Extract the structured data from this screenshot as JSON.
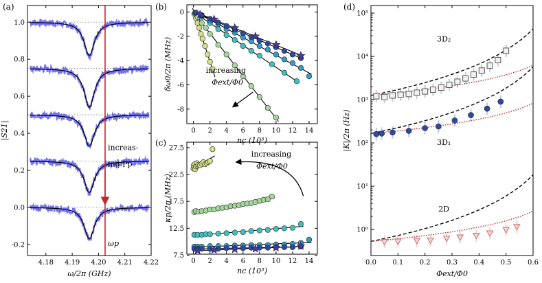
{
  "chart_data": [
    {
      "panel_label": "(a)",
      "type": "line",
      "xlabel": "ω/2π (GHz)",
      "ylabel": "|S21|",
      "xlim": [
        4.173,
        4.22
      ],
      "ylim": [
        -0.26,
        1.09
      ],
      "x_ticks": [
        "4.18",
        "4.19",
        "4.20",
        "4.21",
        "4.22"
      ],
      "y_ticks": [
        "-0.2",
        "0.0",
        "0.2",
        "0.4",
        "0.6",
        "0.8",
        "1.0"
      ],
      "baselines": [
        1.0,
        0.75,
        0.5,
        0.25,
        0.0
      ],
      "dip_center": 4.1965,
      "dip_depths": [
        0.18,
        0.21,
        0.17,
        0.17,
        0.17
      ],
      "vertical_line_x": 4.2025,
      "vertical_line_label": "ωp",
      "annotation": [
        "increas-",
        "ing Pp"
      ],
      "colors": {
        "data": "#5b5bf0",
        "fit": "#000000",
        "marker": "#c0282d"
      }
    },
    {
      "panel_label": "(b)",
      "type": "scatter",
      "xlabel": "nc (10³)",
      "ylabel": "δω0/2π (MHz)",
      "xlim": [
        -0.8,
        15
      ],
      "ylim": [
        -9.2,
        0.6
      ],
      "x_ticks": [
        "0",
        "2",
        "4",
        "6",
        "8",
        "10",
        "12",
        "14"
      ],
      "y_ticks": [
        "0",
        "-2",
        "-4",
        "-6",
        "-8"
      ],
      "annotation": [
        "increasing",
        "Φext/Φ0"
      ],
      "series": [
        {
          "color": "#d5df87",
          "x": [
            0.1,
            0.3,
            0.5,
            0.7,
            0.9,
            1.1,
            1.4,
            1.7,
            2.0,
            2.3
          ],
          "y": [
            -0.15,
            -0.5,
            -0.9,
            -1.3,
            -1.8,
            -2.2,
            -2.8,
            -3.5,
            -4.1,
            -4.7
          ]
        },
        {
          "color": "#a4d89b",
          "x": [
            0.2,
            0.5,
            1.0,
            1.5,
            2.0,
            3.0,
            4.0,
            5.0,
            6.0,
            7.0,
            8.0,
            9.0,
            10.0
          ],
          "y": [
            -0.1,
            -0.4,
            -0.9,
            -1.3,
            -1.8,
            -2.7,
            -3.5,
            -4.4,
            -5.3,
            -6.1,
            -7.0,
            -7.9,
            -8.7
          ]
        },
        {
          "color": "#3fc1c0",
          "x": [
            0.2,
            1.0,
            2.0,
            3.0,
            4.0,
            5.0,
            6.0,
            7.0,
            8.0,
            9.5,
            11.0,
            12.5
          ],
          "y": [
            -0.05,
            -0.4,
            -0.9,
            -1.4,
            -1.9,
            -2.3,
            -2.8,
            -3.2,
            -3.6,
            -4.3,
            -5.0,
            -5.7
          ]
        },
        {
          "color": "#2f9ec9",
          "x": [
            0.3,
            1.0,
            2.0,
            3.0,
            4.0,
            5.0,
            6.0,
            7.0,
            8.0,
            9.0,
            10.0,
            11.0,
            12.0,
            13.0,
            14.0
          ],
          "y": [
            -0.05,
            -0.3,
            -0.7,
            -1.0,
            -1.4,
            -1.7,
            -2.1,
            -2.4,
            -2.8,
            -3.1,
            -3.5,
            -3.9,
            -4.2,
            -4.6,
            -5.3
          ]
        },
        {
          "color": "#2d4aa0",
          "x": [
            0.3,
            1.0,
            2.0,
            3.0,
            4.0,
            5.0,
            6.0,
            7.0,
            8.0,
            9.0,
            10.0,
            11.0,
            12.0,
            13.0
          ],
          "y": [
            -0.05,
            -0.25,
            -0.55,
            -0.85,
            -1.15,
            -1.45,
            -1.75,
            -2.05,
            -2.35,
            -2.6,
            -2.9,
            -3.2,
            -3.5,
            -3.8
          ]
        },
        {
          "color": "#4636b0",
          "x": [
            0.8,
            2.5,
            5.0,
            7.5,
            10.0,
            13.0
          ],
          "y": [
            -0.2,
            -0.6,
            -1.3,
            -2.0,
            -2.7,
            -3.6
          ],
          "marker": "star"
        }
      ]
    },
    {
      "panel_label": "(c)",
      "type": "scatter",
      "xlabel": "nc (10³)",
      "ylabel": "κp/2π (MHz)",
      "xlim": [
        -0.8,
        15
      ],
      "ylim": [
        7.7,
        28.5
      ],
      "x_ticks": [
        "0",
        "2",
        "4",
        "6",
        "8",
        "10",
        "12",
        "14"
      ],
      "y_ticks": [
        "7.5",
        "12.5",
        "17.5",
        "22.5",
        "27.5"
      ],
      "annotation": [
        "increasing",
        "Φext/Φ0"
      ],
      "series": [
        {
          "color": "#d5df87",
          "x": [
            0.0,
            0.05,
            0.1,
            0.15,
            0.2,
            0.3,
            0.4,
            0.5,
            0.6,
            0.8,
            1.0,
            1.2,
            1.4,
            1.6,
            1.8,
            2.0,
            2.3
          ],
          "y": [
            23.6,
            24.2,
            23.9,
            24.4,
            23.5,
            24.0,
            24.6,
            24.1,
            24.3,
            24.2,
            24.5,
            24.8,
            24.4,
            24.6,
            24.8,
            25.0,
            27.2
          ]
        },
        {
          "color": "#a4d89b",
          "x": [
            0.1,
            0.3,
            0.6,
            1.0,
            1.5,
            2.0,
            2.5,
            3.0,
            3.5,
            4.0,
            4.5,
            5.0,
            5.5,
            6.0,
            6.5,
            7.0,
            7.5,
            8.0,
            8.5,
            9.0,
            9.5
          ],
          "y": [
            15.5,
            15.7,
            15.6,
            15.7,
            15.8,
            16.0,
            16.0,
            16.2,
            16.3,
            16.4,
            16.6,
            16.7,
            16.8,
            17.0,
            17.1,
            17.2,
            17.4,
            17.6,
            17.8,
            17.9,
            18.4
          ]
        },
        {
          "color": "#3fc1c0",
          "x": [
            0.1,
            0.5,
            1.0,
            1.5,
            2.0,
            3.0,
            4.0,
            5.0,
            6.0,
            7.0,
            8.0,
            9.0,
            10.0,
            11.0,
            12.0,
            13.0
          ],
          "y": [
            11.3,
            11.3,
            11.3,
            11.4,
            11.4,
            11.5,
            11.6,
            11.7,
            11.8,
            12.0,
            12.1,
            12.2,
            12.4,
            12.5,
            12.6,
            13.3
          ]
        },
        {
          "color": "#2f9ec9",
          "x": [
            0.1,
            0.5,
            1.0,
            2.0,
            3.0,
            4.0,
            5.0,
            6.0,
            7.0,
            8.0,
            9.0,
            10.0,
            11.0,
            12.0,
            13.0,
            14.0
          ],
          "y": [
            9.1,
            9.1,
            9.1,
            9.2,
            9.2,
            9.2,
            9.3,
            9.3,
            9.4,
            9.4,
            9.4,
            9.5,
            9.5,
            9.6,
            9.8,
            10.4
          ]
        },
        {
          "color": "#2d4aa0",
          "x": [
            0.1,
            0.5,
            1.0,
            2.0,
            3.0,
            4.0,
            5.0,
            6.0,
            7.0,
            8.0,
            9.0,
            10.0,
            11.0,
            12.0,
            13.0
          ],
          "y": [
            8.7,
            8.7,
            8.7,
            8.7,
            8.7,
            8.8,
            8.8,
            8.8,
            8.9,
            8.9,
            8.9,
            9.0,
            9.0,
            9.0,
            9.1
          ]
        },
        {
          "color": "#4636b0",
          "x": [
            0.5,
            2.5,
            5.0,
            7.5,
            10.0,
            13.0
          ],
          "y": [
            8.4,
            8.5,
            8.6,
            8.7,
            8.9,
            9.2
          ],
          "marker": "star"
        }
      ]
    },
    {
      "panel_label": "(d)",
      "type": "scatter",
      "xlabel": "Φext/Φ0",
      "ylabel": "|K|/2π (Hz)",
      "xlim": [
        0,
        0.6
      ],
      "ylim": [
        0.25,
        150000
      ],
      "yscale": "log",
      "x_ticks": [
        "0.0",
        "0.1",
        "0.2",
        "0.3",
        "0.4",
        "0.5",
        "0.6"
      ],
      "y_ticks": [
        "10⁰",
        "10¹",
        "10²",
        "10³",
        "10⁴",
        "10⁵"
      ],
      "series": [
        {
          "name": "3D₂",
          "marker": "square",
          "color": "#555555",
          "x": [
            0.02,
            0.05,
            0.08,
            0.11,
            0.14,
            0.17,
            0.2,
            0.23,
            0.26,
            0.29,
            0.32,
            0.35,
            0.38,
            0.41,
            0.44,
            0.47,
            0.5
          ],
          "y": [
            1200,
            1150,
            1250,
            1300,
            1350,
            1450,
            1550,
            1700,
            1900,
            2200,
            2600,
            3100,
            3800,
            4700,
            6100,
            8200,
            13500
          ]
        },
        {
          "name": "3D₁",
          "marker": "circle",
          "color": "#2d4aa0",
          "x": [
            0.02,
            0.04,
            0.08,
            0.14,
            0.2,
            0.25,
            0.31,
            0.37,
            0.43,
            0.48
          ],
          "y": [
            160,
            165,
            175,
            190,
            220,
            240,
            330,
            440,
            620,
            900
          ]
        },
        {
          "name": "2D",
          "marker": "triangle",
          "color": "#c8706a",
          "x": [
            0.05,
            0.1,
            0.17,
            0.22,
            0.28,
            0.33,
            0.39,
            0.44,
            0.5,
            0.54
          ],
          "y": [
            0.52,
            0.53,
            0.55,
            0.56,
            0.62,
            0.66,
            0.72,
            0.82,
            0.98,
            1.15
          ]
        }
      ],
      "fit_lines": {
        "dashed": [
          {
            "base": 1250,
            "series": "3D₂"
          },
          {
            "base": 165,
            "series": "3D₁"
          },
          {
            "base": 0.53,
            "series": "2D"
          }
        ],
        "dotted": [
          {
            "base": 1250
          },
          {
            "base": 165
          },
          {
            "base": 0.53
          }
        ]
      },
      "colors": {
        "dashed": "#000000",
        "dotted": "#c0282d"
      }
    }
  ]
}
